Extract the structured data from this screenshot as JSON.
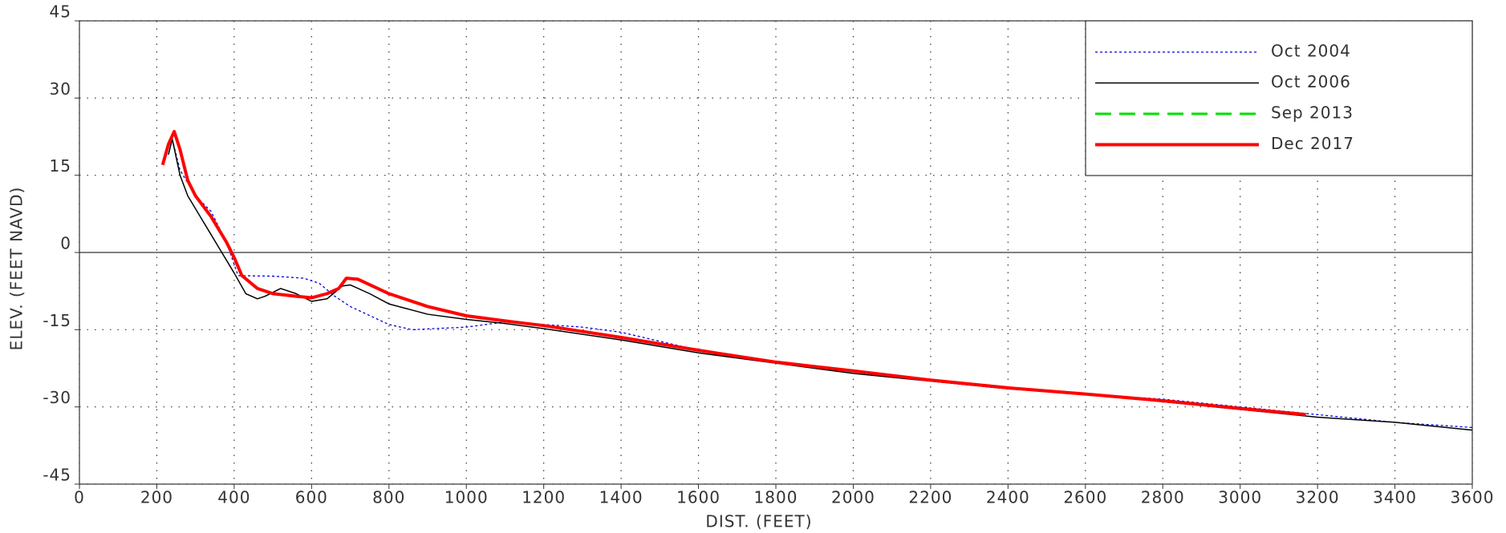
{
  "chart_data": {
    "type": "line",
    "xlabel": "DIST. (FEET)",
    "ylabel": "ELEV. (FEET NAVD)",
    "xlim": [
      0,
      3600
    ],
    "ylim": [
      -45,
      45
    ],
    "xticks": [
      0,
      200,
      400,
      600,
      800,
      1000,
      1200,
      1400,
      1600,
      1800,
      2000,
      2200,
      2400,
      2600,
      2800,
      3000,
      3200,
      3400,
      3600
    ],
    "yticks": [
      -45,
      -30,
      -15,
      0,
      15,
      30,
      45
    ],
    "grid": true,
    "legend": "upper right",
    "series": [
      {
        "name": "Oct 2004",
        "color": "#0000dd",
        "style": "dotted",
        "x": [
          240,
          260,
          300,
          340,
          380,
          410,
          500,
          580,
          620,
          660,
          700,
          800,
          860,
          1000,
          1100,
          1200,
          1300,
          1400,
          1600,
          1800,
          2000,
          2200,
          2400,
          2600,
          2800,
          3000,
          3200,
          3400,
          3600
        ],
        "values": [
          22,
          16,
          11,
          8,
          2,
          -4.5,
          -4.6,
          -5,
          -6,
          -8.5,
          -10.5,
          -14,
          -15,
          -14.5,
          -13.5,
          -14,
          -14.5,
          -15.5,
          -19,
          -21.5,
          -23,
          -25,
          -26.5,
          -27.5,
          -28.5,
          -30,
          -31.5,
          -33,
          -34
        ]
      },
      {
        "name": "Oct 2006",
        "color": "#000000",
        "style": "solid",
        "x": [
          230,
          240,
          260,
          280,
          320,
          360,
          400,
          430,
          460,
          480,
          520,
          560,
          600,
          640,
          680,
          700,
          750,
          800,
          900,
          1000,
          1100,
          1200,
          1400,
          1600,
          1800,
          2000,
          2200,
          2400,
          2600,
          2800,
          3000,
          3200,
          3400,
          3600
        ],
        "values": [
          19,
          22,
          15,
          11,
          6,
          1,
          -4,
          -8,
          -9,
          -8.5,
          -7,
          -8,
          -9.5,
          -9,
          -6.5,
          -6.3,
          -8,
          -10,
          -12,
          -13,
          -13.8,
          -14.8,
          -17,
          -19.5,
          -21.5,
          -23.5,
          -25,
          -26.5,
          -27.5,
          -29,
          -30.5,
          -32,
          -33,
          -34.5
        ]
      },
      {
        "name": "Sep 2013",
        "color": "#00dd00",
        "style": "dashed",
        "x": [],
        "values": []
      },
      {
        "name": "Dec 2017",
        "color": "#ff0000",
        "style": "thick",
        "x": [
          215,
          230,
          245,
          260,
          280,
          300,
          340,
          380,
          400,
          420,
          460,
          500,
          560,
          600,
          640,
          670,
          690,
          720,
          800,
          900,
          1000,
          1100,
          1200,
          1400,
          1600,
          1800,
          2000,
          2200,
          2400,
          2600,
          2800,
          3000,
          3170
        ],
        "values": [
          17,
          21,
          23.5,
          20,
          14,
          11,
          7,
          2,
          -1,
          -4.5,
          -7,
          -8,
          -8.5,
          -8.8,
          -8,
          -7,
          -5,
          -5.2,
          -8,
          -10.5,
          -12.3,
          -13.3,
          -14.2,
          -16.5,
          -19,
          -21.3,
          -23,
          -24.8,
          -26.3,
          -27.5,
          -28.8,
          -30.3,
          -31.5
        ]
      }
    ]
  }
}
